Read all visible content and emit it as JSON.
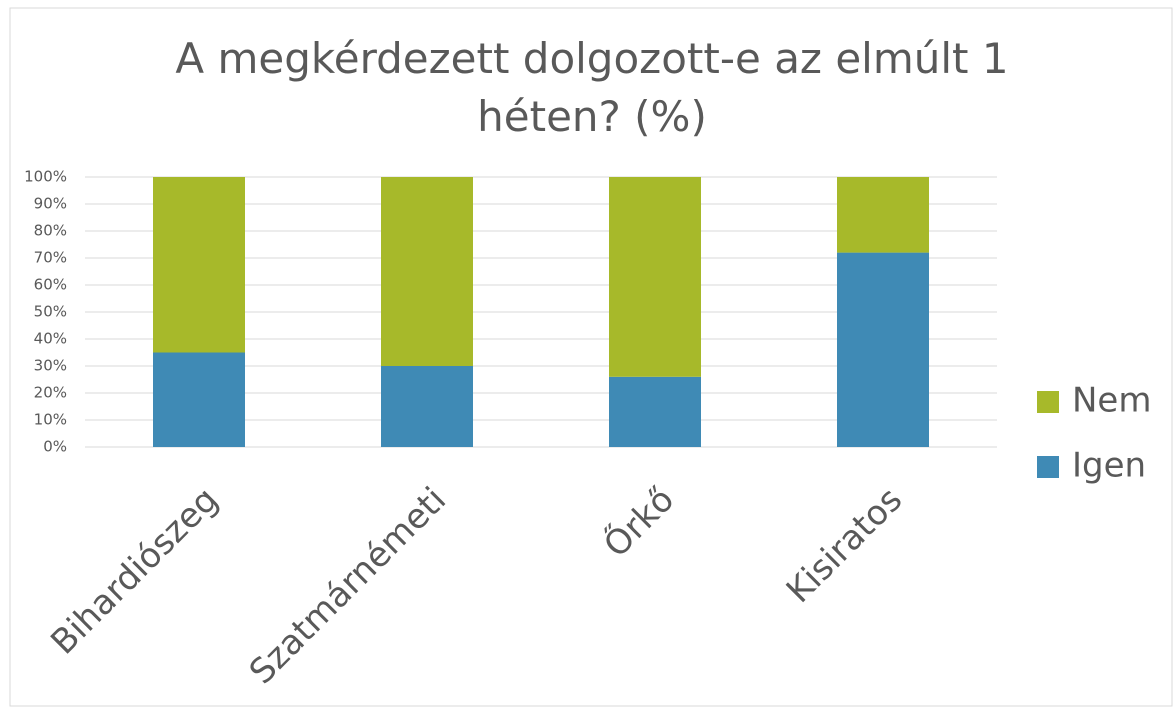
{
  "chart_data": {
    "type": "stacked_bar",
    "title": "A megkérdezett dolgozott-e az elmúlt 1 héten? (%)",
    "categories": [
      "Bihardiószeg",
      "Szatmárnémeti",
      "Őrkő",
      "Kisiratos"
    ],
    "series": [
      {
        "name": "Igen",
        "color": "#3f8ab5",
        "values": [
          35,
          30,
          26,
          72
        ]
      },
      {
        "name": "Nem",
        "color": "#a7b92a",
        "values": [
          65,
          70,
          74,
          28
        ]
      }
    ],
    "ylim": [
      0,
      100
    ],
    "yticks": [
      {
        "value": 0,
        "label": "0%"
      },
      {
        "value": 10,
        "label": "10%"
      },
      {
        "value": 20,
        "label": "20%"
      },
      {
        "value": 30,
        "label": "30%"
      },
      {
        "value": 40,
        "label": "40%"
      },
      {
        "value": 50,
        "label": "50%"
      },
      {
        "value": 60,
        "label": "60%"
      },
      {
        "value": 70,
        "label": "70%"
      },
      {
        "value": 80,
        "label": "80%"
      },
      {
        "value": 90,
        "label": "90%"
      },
      {
        "value": 100,
        "label": "100%"
      }
    ],
    "grid": true,
    "legend": "right"
  }
}
